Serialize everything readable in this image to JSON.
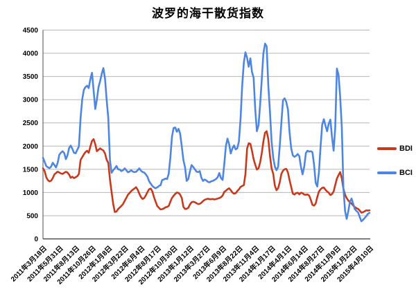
{
  "page": {
    "background": "#ffffff"
  },
  "chart": {
    "title": "波罗的海干散货指数"
  },
  "legend": {
    "items": [
      "BDI",
      "BCI"
    ]
  },
  "chart_data": {
    "type": "line",
    "title": "波罗的海干散货指数",
    "xlabel": "",
    "ylabel": "",
    "ylim": [
      0,
      4500
    ],
    "y_ticks": [
      0,
      500,
      1000,
      1500,
      2000,
      2500,
      3000,
      3500,
      4000,
      4500
    ],
    "grid": true,
    "legend_position": "right",
    "grid_color": "#b5b5b5",
    "axis_color": "#4d4d4d",
    "tick_label_color": "#000000",
    "label_every": 10,
    "categories": [
      "2011年3月18日",
      "2011年5月31日",
      "2011年8月13日",
      "2011年10月26日",
      "2012年1月8日",
      "2012年3月22日",
      "2012年6月4日",
      "2012年8月17日",
      "2012年10月30日",
      "2013年1月12日",
      "2013年3月27日",
      "2013年6月9日",
      "2013年8月22日",
      "2013年11月4日",
      "2014年1月17日",
      "2014年4月1日",
      "2014年6月14日",
      "2014年8月27日",
      "2014年11月9日",
      "2015年1月22日",
      "2015年4月10日"
    ],
    "series": [
      {
        "name": "BDI",
        "color": "#c7391a",
        "values": [
          1520,
          1460,
          1330,
          1265,
          1240,
          1255,
          1310,
          1390,
          1420,
          1448,
          1430,
          1410,
          1400,
          1425,
          1445,
          1430,
          1385,
          1315,
          1340,
          1310,
          1330,
          1350,
          1400,
          1700,
          1760,
          1820,
          1870,
          1900,
          1855,
          1990,
          2110,
          2150,
          2040,
          1890,
          1920,
          1950,
          1925,
          1905,
          1840,
          1705,
          1640,
          1280,
          1015,
          750,
          580,
          590,
          640,
          675,
          710,
          750,
          820,
          880,
          950,
          990,
          1030,
          1060,
          1085,
          1115,
          1060,
          975,
          900,
          860,
          880,
          940,
          1010,
          1070,
          1085,
          1020,
          900,
          800,
          710,
          670,
          635,
          640,
          655,
          680,
          690,
          710,
          800,
          880,
          930,
          970,
          1000,
          990,
          955,
          880,
          690,
          645,
          650,
          670,
          740,
          790,
          800,
          790,
          770,
          750,
          755,
          780,
          815,
          840,
          855,
          865,
          855,
          855,
          860,
          850,
          858,
          868,
          880,
          898,
          935,
          1010,
          1040,
          1070,
          1090,
          1050,
          1000,
          975,
          985,
          1030,
          1070,
          1120,
          1140,
          1160,
          1400,
          1950,
          2060,
          2050,
          1900,
          1720,
          1600,
          1495,
          1520,
          1650,
          1850,
          2100,
          2290,
          2320,
          2150,
          1800,
          1520,
          1400,
          1150,
          1050,
          1090,
          1220,
          1400,
          1470,
          1500,
          1510,
          1430,
          1270,
          1120,
          975,
          955,
          985,
          995,
          960,
          995,
          985,
          955,
          950,
          958,
          935,
          845,
          735,
          716,
          760,
          900,
          1020,
          1070,
          1100,
          1105,
          1060,
          1020,
          995,
          945,
          965,
          1020,
          1160,
          1300,
          1375,
          1440,
          1300,
          1080,
          950,
          880,
          825,
          790,
          760,
          720,
          685,
          660,
          645,
          610,
          565,
          575,
          595,
          615,
          610,
          615
        ]
      },
      {
        "name": "BCI",
        "color": "#4d86e0",
        "values": [
          1750,
          1660,
          1570,
          1540,
          1525,
          1560,
          1640,
          1590,
          1540,
          1640,
          1810,
          1860,
          1890,
          1850,
          1720,
          1800,
          1960,
          2010,
          1940,
          1855,
          1845,
          1920,
          1990,
          2600,
          3000,
          3210,
          3270,
          3300,
          3250,
          3440,
          3580,
          3200,
          2800,
          3000,
          3270,
          3400,
          3560,
          3680,
          3450,
          3000,
          2600,
          1700,
          1425,
          1480,
          1520,
          1570,
          1500,
          1495,
          1460,
          1480,
          1520,
          1480,
          1435,
          1450,
          1480,
          1450,
          1440,
          1445,
          1480,
          1520,
          1470,
          1440,
          1430,
          1390,
          1340,
          1240,
          1190,
          1140,
          1110,
          1090,
          1110,
          1140,
          1160,
          1270,
          1280,
          1300,
          1290,
          1400,
          1750,
          2200,
          2390,
          2400,
          2310,
          2370,
          2270,
          1990,
          1700,
          1540,
          1250,
          1290,
          1450,
          1590,
          1550,
          1500,
          1450,
          1440,
          1460,
          1320,
          1250,
          1280,
          1260,
          1230,
          1220,
          1240,
          1250,
          1270,
          1290,
          1330,
          1420,
          1310,
          1270,
          1600,
          2000,
          2160,
          2040,
          1840,
          1950,
          2015,
          1930,
          1950,
          2100,
          2600,
          3300,
          3800,
          4020,
          3900,
          3710,
          3890,
          3600,
          3470,
          2800,
          2320,
          2450,
          2900,
          3450,
          4000,
          4210,
          4150,
          3300,
          2760,
          2100,
          1750,
          1560,
          1480,
          1550,
          2000,
          2500,
          2990,
          3030,
          2950,
          2790,
          2300,
          1950,
          1800,
          1770,
          1790,
          1830,
          1780,
          1550,
          1390,
          1560,
          1850,
          1900,
          1880,
          1890,
          1870,
          1610,
          1210,
          1130,
          1440,
          2000,
          2460,
          2580,
          2440,
          2320,
          2480,
          2570,
          2200,
          1900,
          2400,
          3670,
          3530,
          3070,
          2400,
          1100,
          600,
          430,
          600,
          800,
          870,
          760,
          640,
          600,
          570,
          470,
          380,
          410,
          450,
          490,
          540,
          560
        ]
      }
    ]
  }
}
